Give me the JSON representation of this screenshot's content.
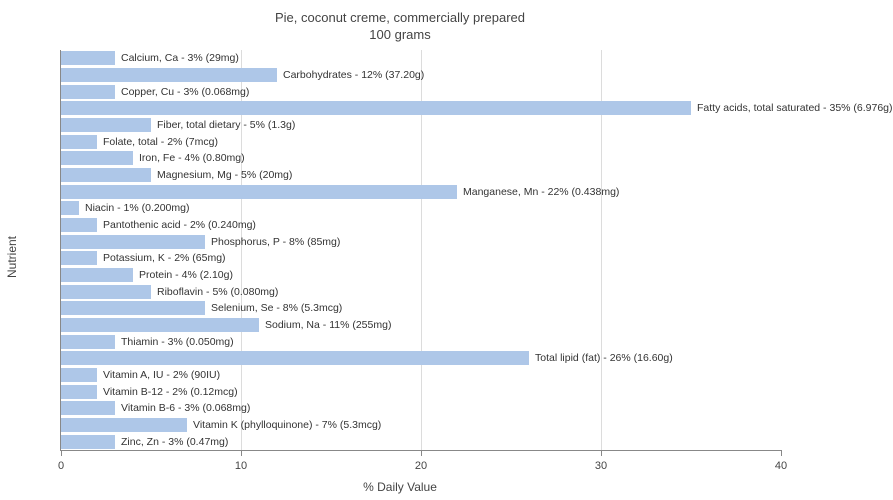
{
  "chart": {
    "type": "bar-horizontal",
    "title_line1": "Pie, coconut creme, commercially prepared",
    "title_line2": "100 grams",
    "title_fontsize": 13,
    "x_axis_title": "% Daily Value",
    "y_axis_title": "Nutrient",
    "xlim": [
      0,
      40
    ],
    "xticks": [
      0,
      10,
      20,
      30,
      40
    ],
    "bar_color": "#aec7e8",
    "grid_color": "#dcdcdc",
    "axis_color": "#888888",
    "text_color": "#333333",
    "background_color": "#ffffff",
    "label_fontsize": 10.5,
    "bars": [
      {
        "label": "Calcium, Ca - 3% (29mg)",
        "value": 3
      },
      {
        "label": "Carbohydrates - 12% (37.20g)",
        "value": 12
      },
      {
        "label": "Copper, Cu - 3% (0.068mg)",
        "value": 3
      },
      {
        "label": "Fatty acids, total saturated - 35% (6.976g)",
        "value": 35
      },
      {
        "label": "Fiber, total dietary - 5% (1.3g)",
        "value": 5
      },
      {
        "label": "Folate, total - 2% (7mcg)",
        "value": 2
      },
      {
        "label": "Iron, Fe - 4% (0.80mg)",
        "value": 4
      },
      {
        "label": "Magnesium, Mg - 5% (20mg)",
        "value": 5
      },
      {
        "label": "Manganese, Mn - 22% (0.438mg)",
        "value": 22
      },
      {
        "label": "Niacin - 1% (0.200mg)",
        "value": 1
      },
      {
        "label": "Pantothenic acid - 2% (0.240mg)",
        "value": 2
      },
      {
        "label": "Phosphorus, P - 8% (85mg)",
        "value": 8
      },
      {
        "label": "Potassium, K - 2% (65mg)",
        "value": 2
      },
      {
        "label": "Protein - 4% (2.10g)",
        "value": 4
      },
      {
        "label": "Riboflavin - 5% (0.080mg)",
        "value": 5
      },
      {
        "label": "Selenium, Se - 8% (5.3mcg)",
        "value": 8
      },
      {
        "label": "Sodium, Na - 11% (255mg)",
        "value": 11
      },
      {
        "label": "Thiamin - 3% (0.050mg)",
        "value": 3
      },
      {
        "label": "Total lipid (fat) - 26% (16.60g)",
        "value": 26
      },
      {
        "label": "Vitamin A, IU - 2% (90IU)",
        "value": 2
      },
      {
        "label": "Vitamin B-12 - 2% (0.12mcg)",
        "value": 2
      },
      {
        "label": "Vitamin B-6 - 3% (0.068mg)",
        "value": 3
      },
      {
        "label": "Vitamin K (phylloquinone) - 7% (5.3mcg)",
        "value": 7
      },
      {
        "label": "Zinc, Zn - 3% (0.47mg)",
        "value": 3
      }
    ]
  }
}
